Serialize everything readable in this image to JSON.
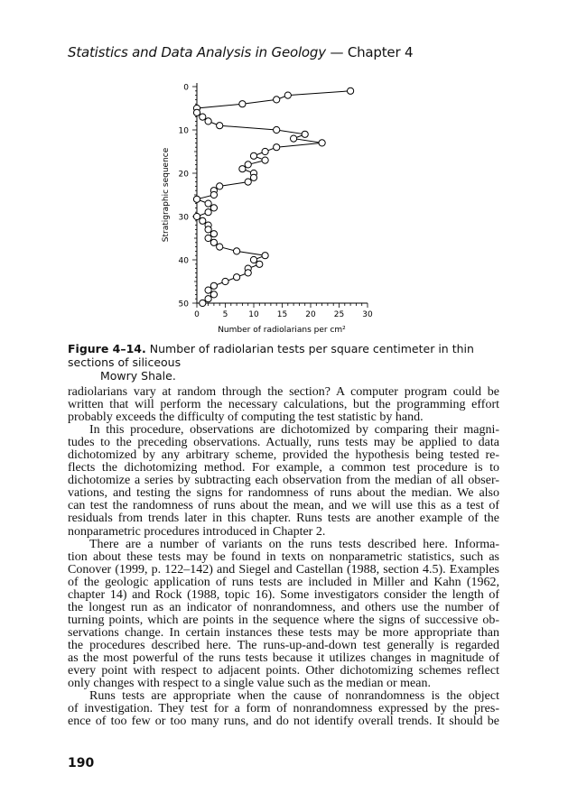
{
  "header": {
    "title_italic": "Statistics and Data Analysis in Geology",
    "title_rest": " — Chapter 4"
  },
  "chart_data": {
    "type": "line",
    "xlabel": "Number of radiolarians per cm²",
    "ylabel": "Stratigraphic sequence",
    "xlim": [
      0,
      30
    ],
    "ylim": [
      0,
      50
    ],
    "y_inverted": true,
    "xticks": [
      "0",
      "5",
      "10",
      "15",
      "20",
      "25",
      "30"
    ],
    "yticks": [
      "0",
      "10",
      "20",
      "30",
      "40",
      "50"
    ],
    "marker": "open-circle",
    "grid": false,
    "points": [
      [
        27,
        1
      ],
      [
        16,
        2
      ],
      [
        14,
        3
      ],
      [
        8,
        4
      ],
      [
        0,
        5
      ],
      [
        0,
        6
      ],
      [
        1,
        7
      ],
      [
        2,
        8
      ],
      [
        4,
        9
      ],
      [
        14,
        10
      ],
      [
        19,
        11
      ],
      [
        17,
        12
      ],
      [
        22,
        13
      ],
      [
        14,
        14
      ],
      [
        12,
        15
      ],
      [
        10,
        16
      ],
      [
        12,
        17
      ],
      [
        9,
        18
      ],
      [
        8,
        19
      ],
      [
        10,
        20
      ],
      [
        10,
        21
      ],
      [
        9,
        22
      ],
      [
        4,
        23
      ],
      [
        3,
        24
      ],
      [
        3,
        25
      ],
      [
        0,
        26
      ],
      [
        2,
        27
      ],
      [
        3,
        28
      ],
      [
        2,
        29
      ],
      [
        0,
        30
      ],
      [
        1,
        31
      ],
      [
        2,
        32
      ],
      [
        2,
        33
      ],
      [
        3,
        34
      ],
      [
        2,
        35
      ],
      [
        3,
        36
      ],
      [
        4,
        37
      ],
      [
        7,
        38
      ],
      [
        12,
        39
      ],
      [
        10,
        40
      ],
      [
        11,
        41
      ],
      [
        9,
        42
      ],
      [
        9,
        43
      ],
      [
        7,
        44
      ],
      [
        5,
        45
      ],
      [
        3,
        46
      ],
      [
        2,
        47
      ],
      [
        3,
        48
      ],
      [
        2,
        49
      ],
      [
        1,
        50
      ]
    ]
  },
  "caption": {
    "label": "Figure 4–14.",
    "text1": " Number of radiolarian tests per square centimeter in thin sections of siliceous",
    "text2": "Mowry Shale."
  },
  "body_lines": [
    {
      "t": "radiolarians vary at random through the section?  A computer program could be"
    },
    {
      "t": "written that will perform the necessary calculations, but the programming effort"
    },
    {
      "t": "probably exceeds the difficulty of computing the test statistic by hand.",
      "last": true
    },
    {
      "t": "In this procedure, observations are dichotomized by comparing their magni-",
      "ind": true
    },
    {
      "t": "tudes to the preceding observations.  Actually, runs tests may be applied to data"
    },
    {
      "t": "dichotomized by any arbitrary scheme, provided the hypothesis being tested re-"
    },
    {
      "t": "flects the dichotomizing method.  For example, a common test procedure is to"
    },
    {
      "t": "dichotomize a series by subtracting each observation from the median of all obser-"
    },
    {
      "t": "vations, and testing the signs for randomness of runs about the median.  We also"
    },
    {
      "t": "can test the randomness of runs about the mean, and we will use this as a test of"
    },
    {
      "t": "residuals from trends later in this chapter.  Runs tests are another example of the"
    },
    {
      "t": "nonparametric procedures introduced in Chapter 2.",
      "last": true
    },
    {
      "t": "There are a number of variants on the runs tests described here.  Informa-",
      "ind": true
    },
    {
      "t": "tion about these tests may be found in texts on nonparametric statistics, such as"
    },
    {
      "t": "Conover (1999, p. 122–142) and Siegel and Castellan (1988, section 4.5). Examples"
    },
    {
      "t": "of the geologic application of runs tests are included in Miller and Kahn (1962,"
    },
    {
      "t": "chapter 14) and Rock (1988, topic 16).  Some investigators consider the length of"
    },
    {
      "t": "the longest run as an indicator of nonrandomness, and others use the number of"
    },
    {
      "t": "turning points, which are points in the sequence where the signs of successive ob-"
    },
    {
      "t": "servations change.  In certain instances these tests may be more appropriate than"
    },
    {
      "t": "the procedures described here.  The runs-up-and-down test generally is regarded"
    },
    {
      "t": "as the most powerful of the runs tests because it utilizes changes in magnitude of"
    },
    {
      "t": "every point with respect to adjacent points.  Other dichotomizing schemes reflect"
    },
    {
      "t": "only changes with respect to a single value such as the median or mean.",
      "last": true
    },
    {
      "t": "Runs tests are appropriate when the cause of nonrandomness is the object",
      "ind": true
    },
    {
      "t": "of investigation.  They test for a form of nonrandomness expressed by the pres-"
    },
    {
      "t": "ence of too few or too many runs, and do not identify overall trends.  It should be"
    }
  ],
  "page_number": "190"
}
